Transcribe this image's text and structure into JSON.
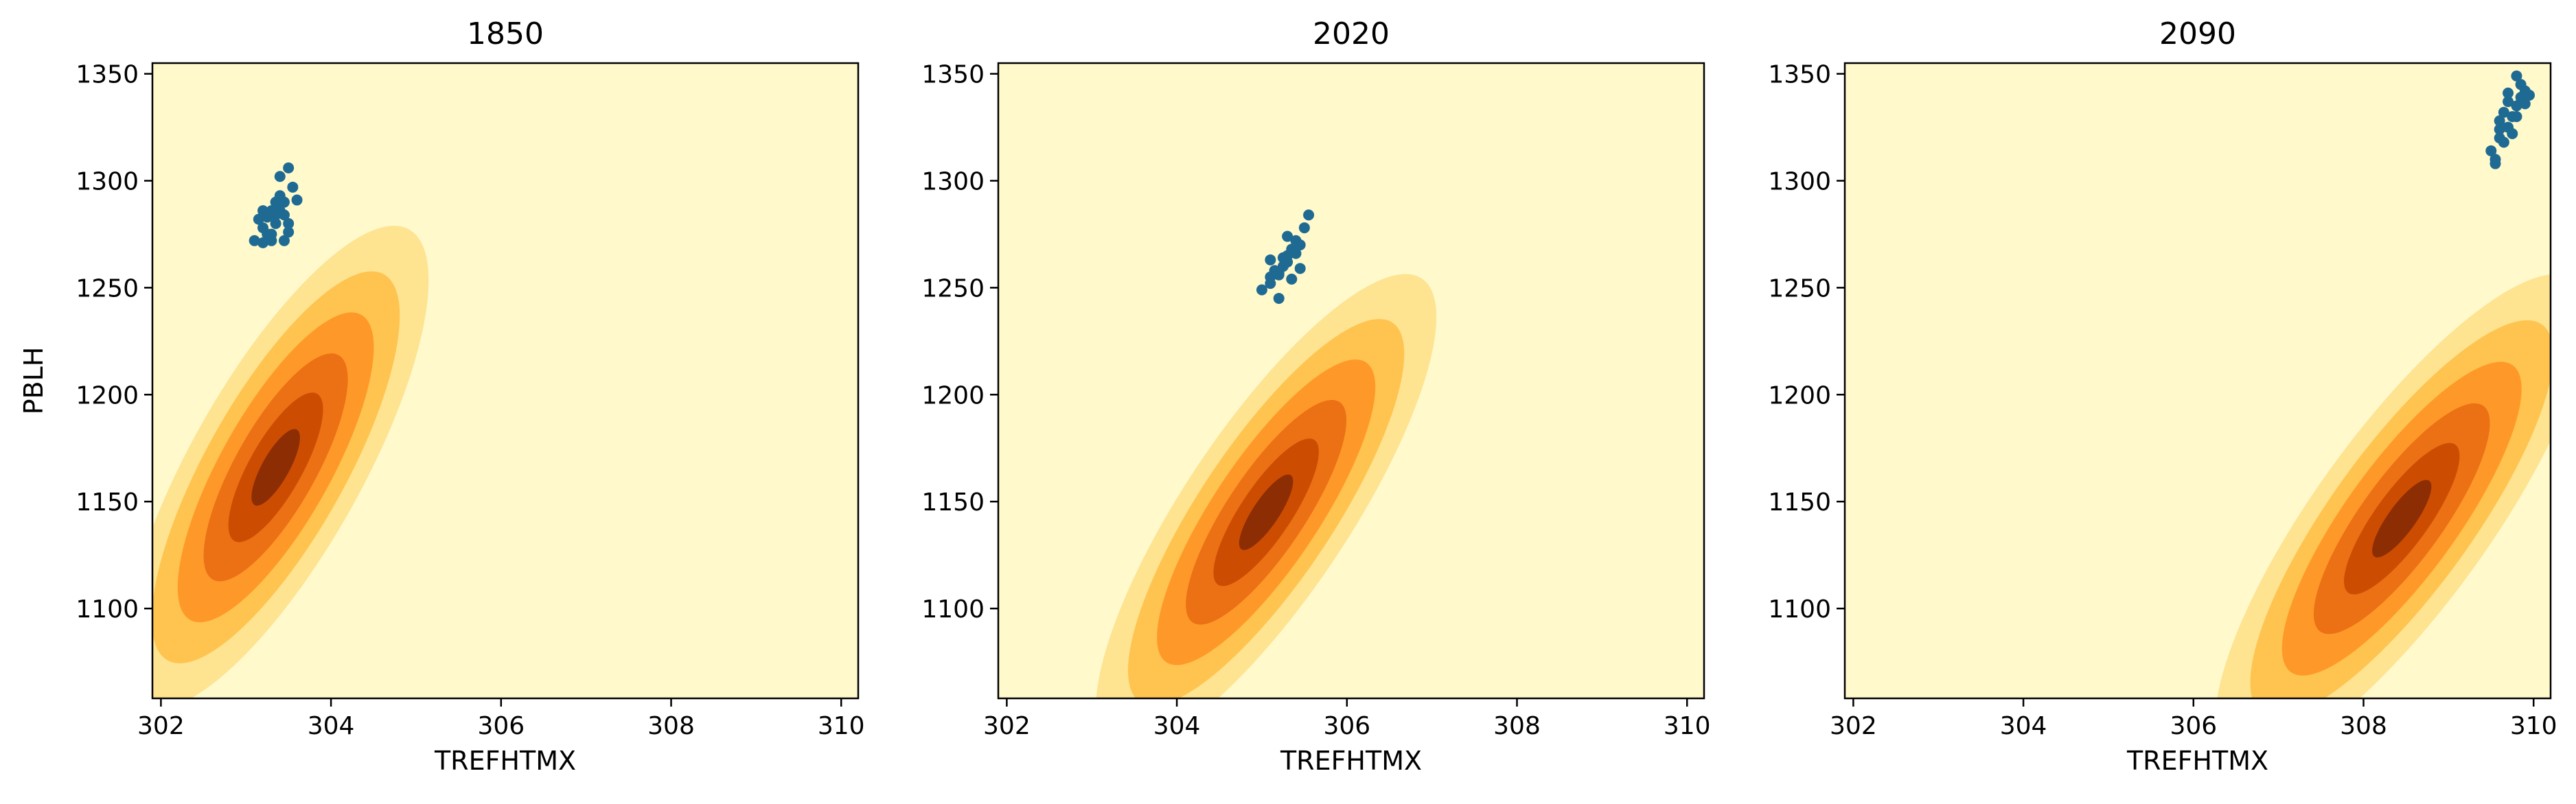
{
  "chart_data": [
    {
      "type": "scatter",
      "title": "1850",
      "xlabel": "TREFHTMX",
      "ylabel": "PBLH",
      "xlim": [
        301.9,
        310.2
      ],
      "ylim": [
        1058,
        1355
      ],
      "xticks": [
        302,
        304,
        306,
        308,
        310
      ],
      "yticks": [
        1100,
        1150,
        1200,
        1250,
        1300,
        1350
      ],
      "grid": false,
      "points": [
        [
          303.1,
          1272
        ],
        [
          303.2,
          1278
        ],
        [
          303.25,
          1283
        ],
        [
          303.3,
          1286
        ],
        [
          303.35,
          1290
        ],
        [
          303.4,
          1293
        ],
        [
          303.45,
          1284
        ],
        [
          303.5,
          1280
        ],
        [
          303.3,
          1275
        ],
        [
          303.2,
          1271
        ],
        [
          303.4,
          1302
        ],
        [
          303.5,
          1306
        ],
        [
          303.55,
          1297
        ],
        [
          303.6,
          1291
        ],
        [
          303.45,
          1272
        ],
        [
          303.5,
          1276
        ],
        [
          303.35,
          1280
        ],
        [
          303.25,
          1275
        ],
        [
          303.15,
          1282
        ],
        [
          303.3,
          1272
        ],
        [
          303.4,
          1286
        ],
        [
          303.2,
          1286
        ],
        [
          303.45,
          1290
        ],
        [
          303.35,
          1284
        ]
      ],
      "density": {
        "center": [
          303.35,
          1166
        ],
        "sx": 0.62,
        "sy": 44,
        "rho": 0.82,
        "levels": [
          0.16,
          0.3,
          0.46,
          0.62,
          0.8
        ]
      }
    },
    {
      "type": "scatter",
      "title": "2020",
      "xlabel": "TREFHTMX",
      "ylabel": "",
      "xlim": [
        301.9,
        310.2
      ],
      "ylim": [
        1058,
        1355
      ],
      "xticks": [
        302,
        304,
        306,
        308,
        310
      ],
      "yticks": [
        1100,
        1150,
        1200,
        1250,
        1300,
        1350
      ],
      "grid": false,
      "points": [
        [
          305.0,
          1249
        ],
        [
          305.1,
          1252
        ],
        [
          305.2,
          1256
        ],
        [
          305.25,
          1260
        ],
        [
          305.3,
          1265
        ],
        [
          305.35,
          1268
        ],
        [
          305.4,
          1272
        ],
        [
          305.5,
          1278
        ],
        [
          305.55,
          1284
        ],
        [
          305.1,
          1263
        ],
        [
          305.2,
          1245
        ],
        [
          305.3,
          1262
        ],
        [
          305.35,
          1254
        ],
        [
          305.45,
          1259
        ],
        [
          305.15,
          1258
        ],
        [
          305.25,
          1264
        ],
        [
          305.4,
          1266
        ],
        [
          305.3,
          1274
        ],
        [
          305.2,
          1257
        ],
        [
          305.1,
          1255
        ],
        [
          305.45,
          1270
        ]
      ],
      "density": {
        "center": [
          305.05,
          1145
        ],
        "sx": 0.72,
        "sy": 43,
        "rho": 0.84,
        "levels": [
          0.16,
          0.3,
          0.46,
          0.62,
          0.8
        ]
      }
    },
    {
      "type": "scatter",
      "title": "2090",
      "xlabel": "TREFHTMX",
      "ylabel": "",
      "xlim": [
        301.9,
        310.2
      ],
      "ylim": [
        1058,
        1355
      ],
      "xticks": [
        302,
        304,
        306,
        308,
        310
      ],
      "yticks": [
        1100,
        1150,
        1200,
        1250,
        1300,
        1350
      ],
      "grid": false,
      "points": [
        [
          309.5,
          1314
        ],
        [
          309.55,
          1308
        ],
        [
          309.6,
          1320
        ],
        [
          309.65,
          1318
        ],
        [
          309.7,
          1325
        ],
        [
          309.75,
          1330
        ],
        [
          309.8,
          1335
        ],
        [
          309.85,
          1339
        ],
        [
          309.9,
          1342
        ],
        [
          309.8,
          1349
        ],
        [
          309.7,
          1337
        ],
        [
          309.75,
          1322
        ],
        [
          309.6,
          1328
        ],
        [
          309.65,
          1332
        ],
        [
          309.85,
          1345
        ],
        [
          309.9,
          1336
        ],
        [
          309.8,
          1330
        ],
        [
          309.7,
          1341
        ],
        [
          309.55,
          1310
        ],
        [
          309.95,
          1340
        ],
        [
          309.6,
          1324
        ]
      ],
      "density": {
        "center": [
          308.45,
          1142
        ],
        "sx": 0.8,
        "sy": 44,
        "rho": 0.84,
        "levels": [
          0.16,
          0.3,
          0.46,
          0.62,
          0.8
        ]
      }
    }
  ],
  "colors": {
    "background": "#fff9cc",
    "fills": [
      "#fee391",
      "#fec44f",
      "#fe9929",
      "#ec7014",
      "#cc4c02",
      "#8c2d04"
    ],
    "points": "#1f6a93"
  }
}
